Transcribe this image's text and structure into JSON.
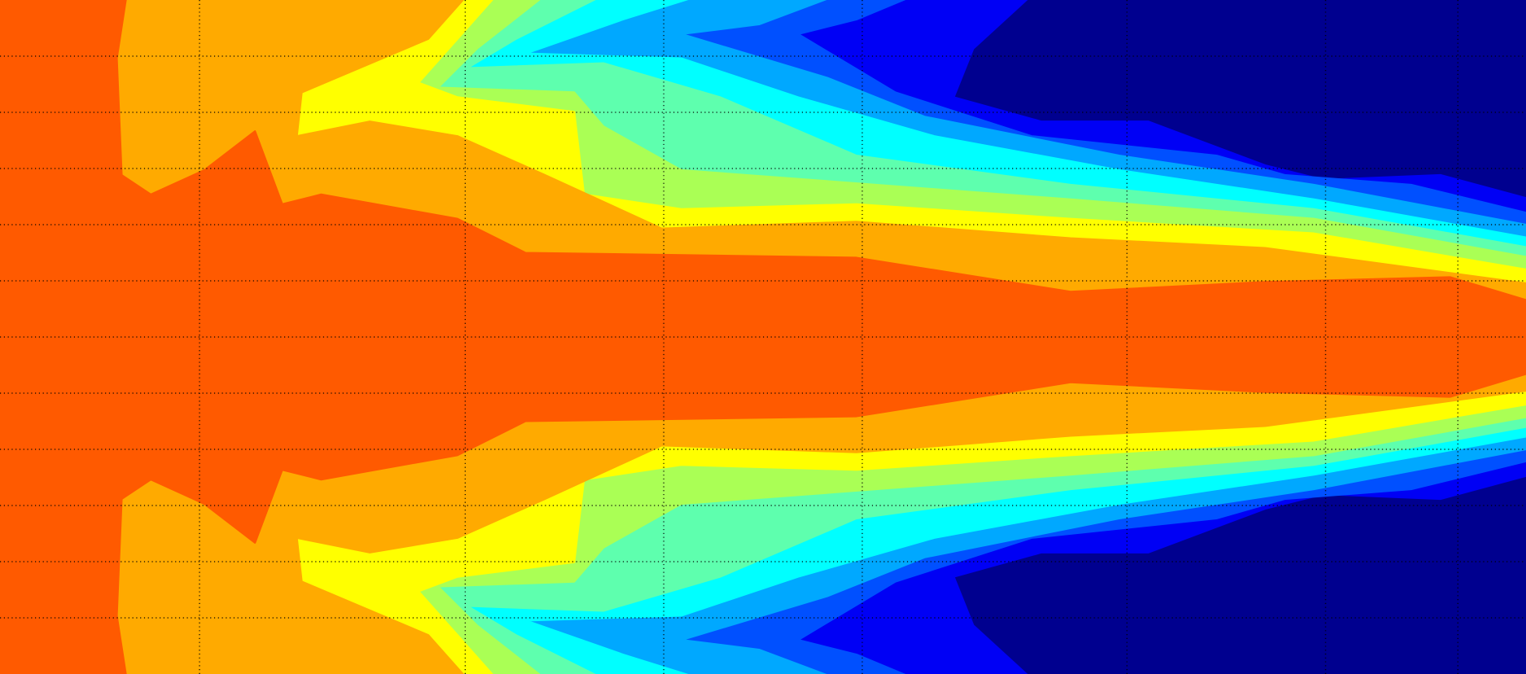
{
  "chart_data": {
    "type": "contour",
    "grid": true
  }
}
